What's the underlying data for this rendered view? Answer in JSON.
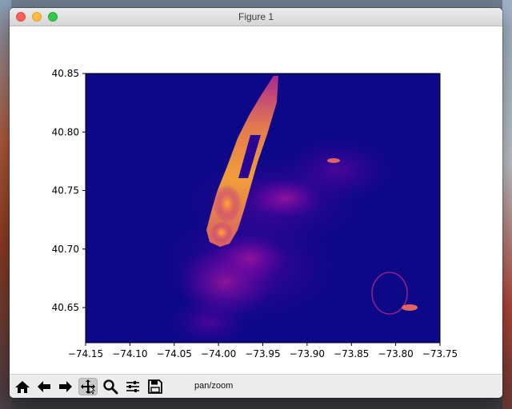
{
  "window": {
    "title": "Figure 1"
  },
  "toolbar": {
    "tools": [
      {
        "name": "home",
        "icon": "home-icon"
      },
      {
        "name": "back",
        "icon": "arrow-left-icon"
      },
      {
        "name": "forward",
        "icon": "arrow-right-icon"
      },
      {
        "name": "pan",
        "icon": "move-icon",
        "active": true
      },
      {
        "name": "zoom",
        "icon": "magnifier-icon"
      },
      {
        "name": "configure subplots",
        "icon": "sliders-icon"
      },
      {
        "name": "save",
        "icon": "floppy-disk-icon"
      }
    ],
    "status": "pan/zoom"
  },
  "chart_data": {
    "type": "heatmap",
    "title": "",
    "xlabel": "",
    "ylabel": "",
    "xlim": [
      -74.15,
      -73.75
    ],
    "ylim": [
      40.62,
      40.85
    ],
    "xticks": [
      "−74.15",
      "−74.10",
      "−74.05",
      "−74.00",
      "−73.95",
      "−73.90",
      "−73.85",
      "−73.80",
      "−73.75"
    ],
    "yticks": [
      "40.85",
      "40.80",
      "40.75",
      "40.70",
      "40.65"
    ],
    "colormap": "plasma",
    "background_color": "#0d0887",
    "grid": false,
    "legend": "none"
  }
}
